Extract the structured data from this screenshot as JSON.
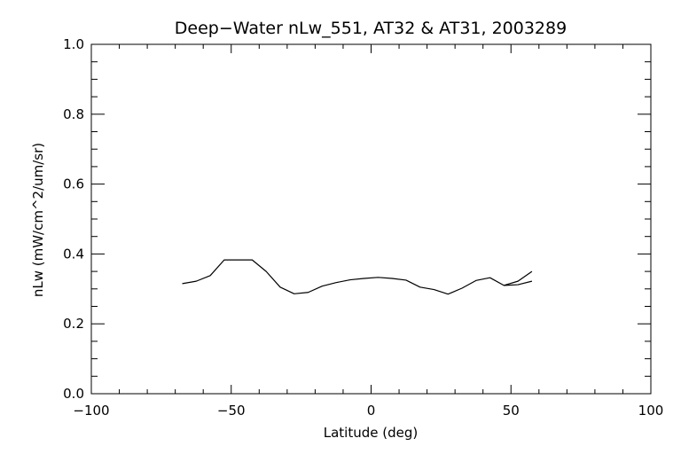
{
  "chart_data": {
    "type": "line",
    "title": "Deep−Water nLw_551, AT32 & AT31, 2003289",
    "xlabel": "Latitude (deg)",
    "ylabel": "nLw (mW/cm^2/um/sr)",
    "xlim": [
      -100,
      100
    ],
    "ylim": [
      0.0,
      1.0
    ],
    "x_ticks": [
      -100,
      -50,
      0,
      50,
      100
    ],
    "x_tick_labels": [
      "−100",
      "−50",
      "0",
      "50",
      "100"
    ],
    "y_ticks": [
      0.0,
      0.2,
      0.4,
      0.6,
      0.8,
      1.0
    ],
    "y_tick_labels": [
      "0.0",
      "0.2",
      "0.4",
      "0.6",
      "0.8",
      "1.0"
    ],
    "grid": false,
    "line_color": "#000000",
    "series": [
      {
        "x": [
          -67.5,
          -62.5,
          -57.5,
          -52.5,
          -47.5,
          -42.5,
          -37.5,
          -32.5,
          -27.5,
          -22.5,
          -17.5,
          -12.5,
          -7.5,
          -2.5,
          2.5,
          7.5,
          12.5,
          17.5,
          22.5,
          27.5,
          32.5,
          37.5,
          42.5,
          47.5,
          52.5,
          57.5
        ],
        "y": [
          0.315,
          0.322,
          0.338,
          0.383,
          0.383,
          0.383,
          0.35,
          0.305,
          0.286,
          0.29,
          0.308,
          0.318,
          0.326,
          0.33,
          0.333,
          0.33,
          0.325,
          0.305,
          0.298,
          0.285,
          0.302,
          0.324,
          0.332,
          0.31,
          0.312,
          0.322
        ]
      },
      {
        "x": [
          47.5,
          52.5,
          57.5
        ],
        "y": [
          0.31,
          0.322,
          0.35
        ]
      }
    ]
  }
}
